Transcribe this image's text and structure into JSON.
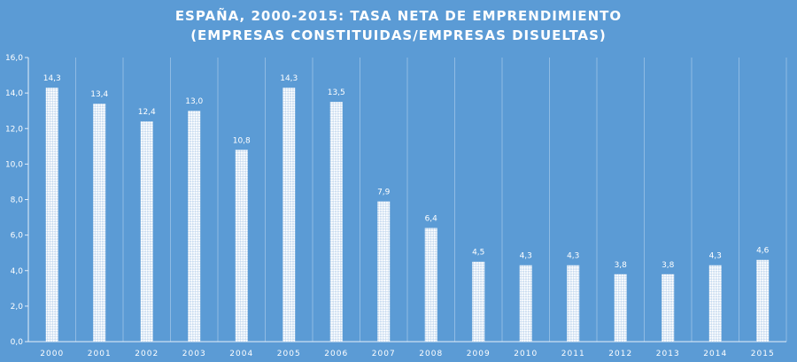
{
  "chart_data": {
    "type": "bar",
    "title": "ESPAÑA, 2000-2015: TASA NETA DE EMPRENDIMIENTO",
    "subtitle": "(EMPRESAS CONSTITUIDAS/EMPRESAS  DISUELTAS)",
    "xlabel": "",
    "ylabel": "",
    "ylim": [
      0,
      16
    ],
    "yticks": [
      0,
      2,
      4,
      6,
      8,
      10,
      12,
      14,
      16
    ],
    "ytick_labels": [
      "0,0",
      "2,0",
      "4,0",
      "6,0",
      "8,0",
      "10,0",
      "12,0",
      "14,0",
      "16,0"
    ],
    "categories": [
      "2000",
      "2001",
      "2002",
      "2003",
      "2004",
      "2005",
      "2006",
      "2007",
      "2008",
      "2009",
      "2010",
      "2011",
      "2012",
      "2013",
      "2014",
      "2015"
    ],
    "values": [
      14.3,
      13.4,
      12.4,
      13.0,
      10.8,
      14.3,
      13.5,
      7.9,
      6.4,
      4.5,
      4.3,
      4.3,
      3.8,
      3.8,
      4.3,
      4.6
    ],
    "value_labels": [
      "14,3",
      "13,4",
      "12,4",
      "13,0",
      "10,8",
      "14,3",
      "13,5",
      "7,9",
      "6,4",
      "4,5",
      "4,3",
      "4,3",
      "3,8",
      "3,8",
      "4,3",
      "4,6"
    ],
    "grid": "vertical-category-separators",
    "bar_pattern": "checkered-white",
    "colors": {
      "background": "#5b9bd5",
      "bar_fill": "#ffffff",
      "bar_pattern_alt": "#c9dcf0",
      "gridline": "#8fbbe4",
      "axis": "#e6eff9",
      "text": "#ffffff"
    }
  }
}
